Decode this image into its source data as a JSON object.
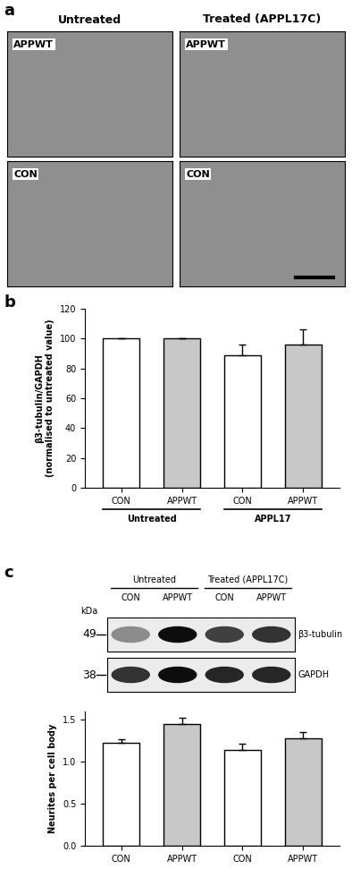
{
  "panel_labels": [
    "a",
    "b",
    "c"
  ],
  "images": {
    "columns": [
      "Untreated",
      "Treated (APPL17C)"
    ],
    "rows": [
      "APPWT",
      "CON"
    ]
  },
  "blot": {
    "groups": [
      "Untreated",
      "Treated (APPL17C)"
    ],
    "lanes": [
      "CON",
      "APPWT",
      "CON",
      "APPWT"
    ],
    "unit": "kDa",
    "markers": [
      {
        "kda": 49,
        "label": "β3-tubulin"
      },
      {
        "kda": 38,
        "label": "GAPDH"
      }
    ]
  },
  "chart_data": [
    {
      "type": "bar",
      "y_label": "β3-tubulin/GAPDH\n(normalised to untreated value)",
      "categories": [
        "CON",
        "APPWT",
        "CON",
        "APPWT"
      ],
      "group_labels": [
        "Untreated",
        "APPL17"
      ],
      "values": [
        100,
        100,
        89,
        96
      ],
      "errors": [
        0,
        0,
        7,
        10
      ],
      "colors": [
        "#ffffff",
        "#c8c8c8",
        "#ffffff",
        "#c8c8c8"
      ],
      "ylim": [
        0,
        120
      ],
      "yticks": [
        0,
        20,
        40,
        60,
        80,
        100,
        120
      ]
    },
    {
      "type": "bar",
      "y_label": "Neurites per cell body",
      "categories": [
        "CON",
        "APPWT",
        "CON",
        "APPWT"
      ],
      "values": [
        1.23,
        1.45,
        1.14,
        1.28
      ],
      "errors": [
        0.04,
        0.08,
        0.08,
        0.08
      ],
      "colors": [
        "#ffffff",
        "#c8c8c8",
        "#ffffff",
        "#c8c8c8"
      ],
      "ylim": [
        0,
        1.6
      ],
      "yticks": [
        0.0,
        0.5,
        1.0,
        1.5
      ]
    }
  ]
}
